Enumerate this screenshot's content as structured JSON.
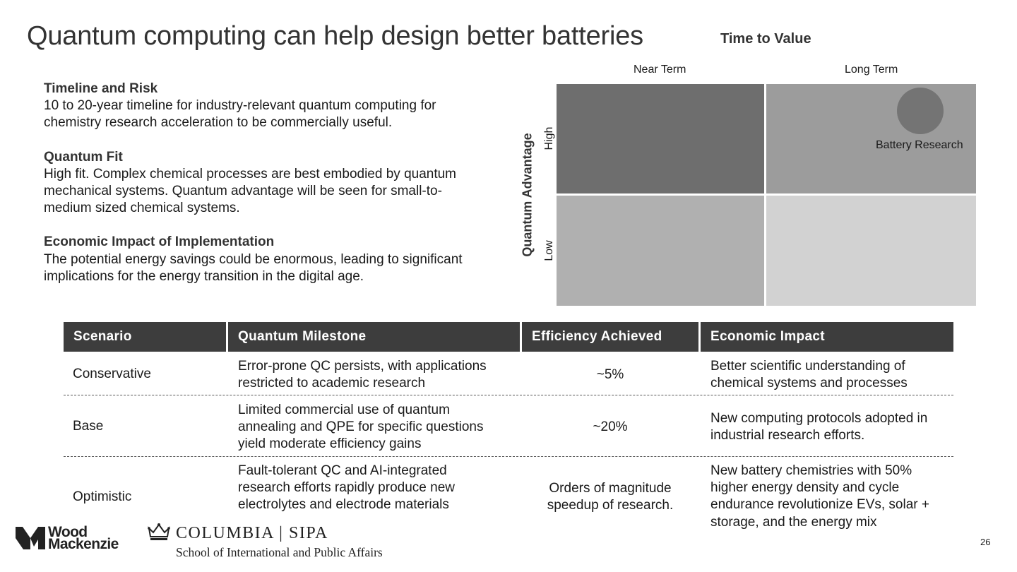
{
  "slide": {
    "title": "Quantum computing can help design better batteries",
    "page_number": "26"
  },
  "sections": [
    {
      "heading": "Timeline and Risk",
      "body": "10 to 20-year timeline for industry-relevant quantum computing for chemistry research acceleration to be commercially useful."
    },
    {
      "heading": "Quantum Fit",
      "body": "High fit. Complex chemical processes are best embodied by quantum mechanical systems. Quantum advantage will be seen for small-to-medium sized chemical systems."
    },
    {
      "heading": "Economic Impact of Implementation",
      "body": "The potential energy savings could be enormous, leading to significant implications for the energy transition in the digital age."
    }
  ],
  "matrix": {
    "x_axis_title": "Time to Value",
    "columns": [
      "Near Term",
      "Long Term"
    ],
    "y_axis_title": "Quantum Advantage",
    "rows": [
      "High",
      "Low"
    ],
    "quadrant_colors": {
      "high_near": "#6e6e6e",
      "high_long": "#9c9c9c",
      "low_near": "#b0b0b0",
      "low_long": "#d2d2d2"
    },
    "marker": {
      "label": "Battery Research",
      "row": "High",
      "column": "Long Term",
      "color": "#747474"
    }
  },
  "table": {
    "headers": [
      "Scenario",
      "Quantum Milestone",
      "Efficiency Achieved",
      "Economic Impact"
    ],
    "header_color": "#3d3d3d",
    "rows": [
      {
        "scenario": "Conservative",
        "milestone": [
          "Error-prone QC persists, with applications",
          "restricted to academic research"
        ],
        "efficiency": [
          "~5%"
        ],
        "impact": [
          "Better scientific understanding of",
          "chemical systems and processes"
        ]
      },
      {
        "scenario": "Base",
        "milestone": [
          "Limited commercial use of quantum",
          "annealing and QPE for specific questions",
          "yield moderate efficiency gains"
        ],
        "efficiency": [
          "~20%"
        ],
        "impact": [
          "New computing protocols adopted in",
          "industrial research efforts."
        ]
      },
      {
        "scenario": "Optimistic",
        "milestone": [
          "Fault-tolerant QC and AI-integrated",
          "research efforts rapidly produce new",
          "electrolytes and electrode materials"
        ],
        "efficiency": [
          "Orders of magnitude",
          "speedup of research."
        ],
        "impact": [
          "New battery chemistries with 50%",
          "higher energy density and cycle",
          "endurance revolutionize EVs, solar +",
          "storage, and the energy mix"
        ]
      }
    ]
  },
  "logos": {
    "woodmac": {
      "line1": "Wood",
      "line2": "Mackenzie"
    },
    "columbia": {
      "name": "COLUMBIA | SIPA",
      "subtitle": "School of International and Public Affairs"
    }
  }
}
